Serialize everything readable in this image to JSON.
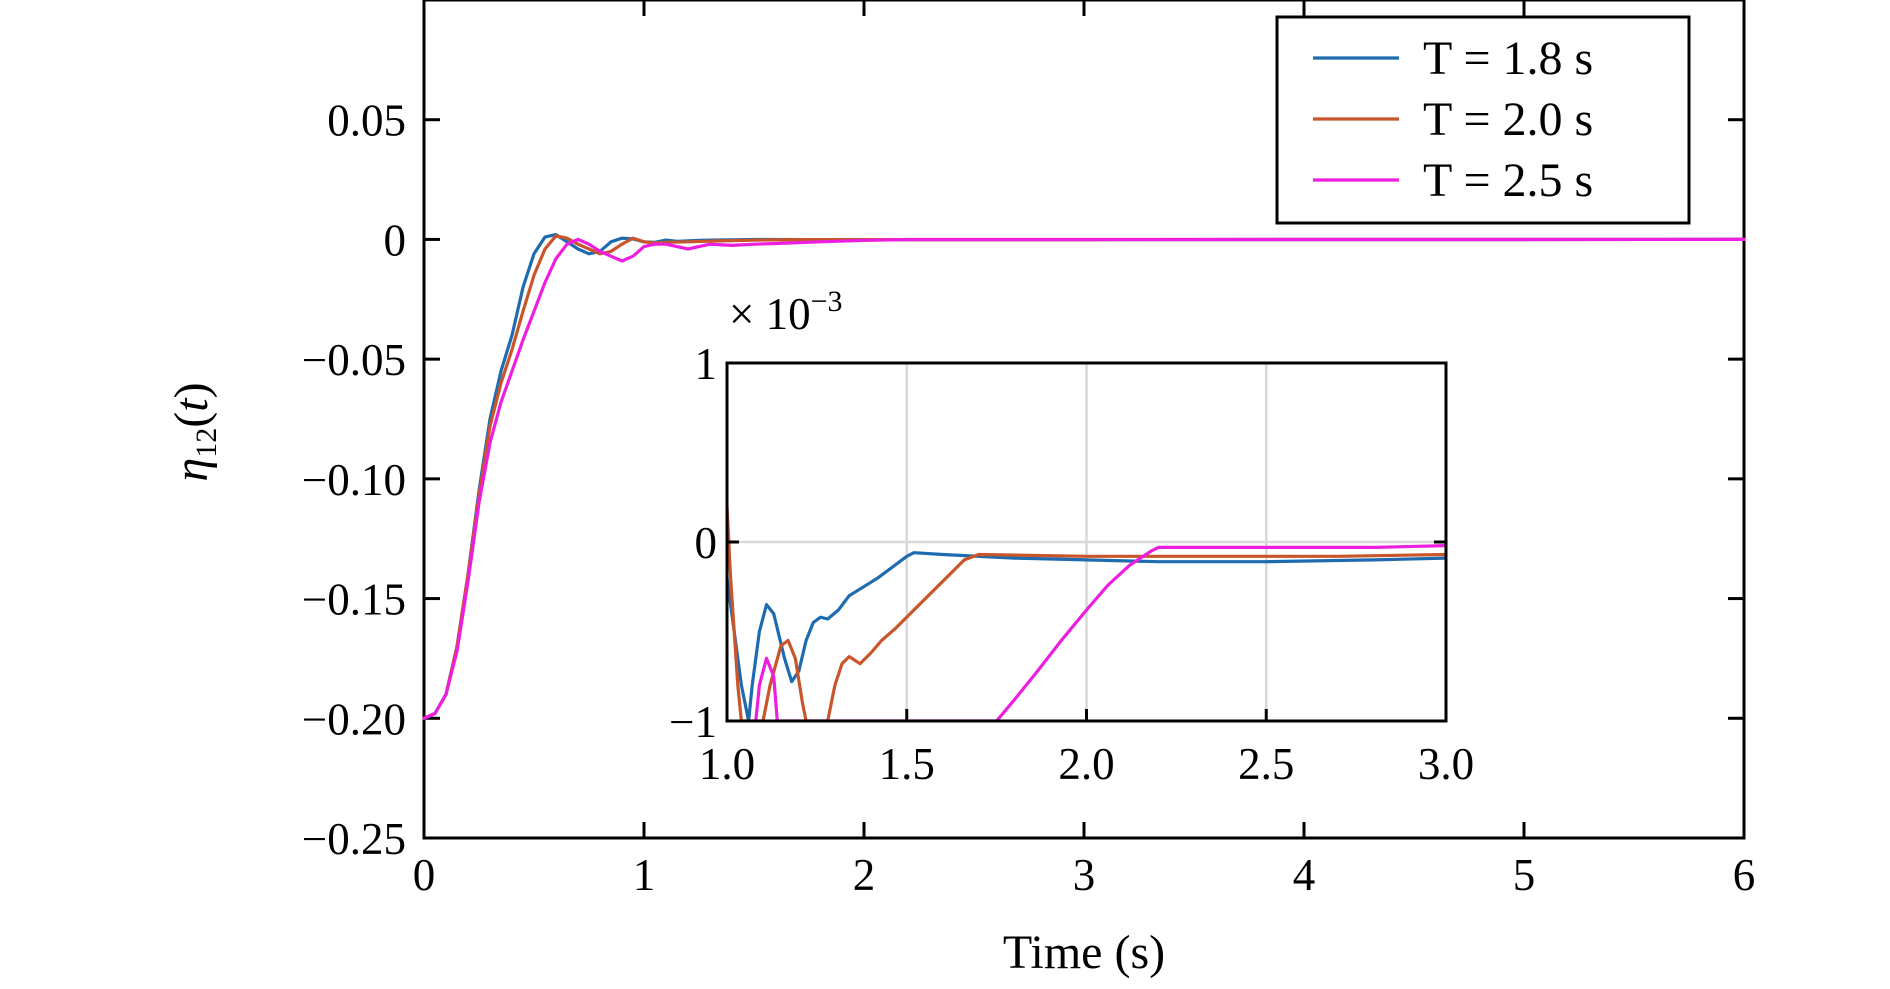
{
  "chart_data": [
    {
      "type": "line",
      "xlabel": "Time (s)",
      "ylabel": "η12(t)",
      "xlim": [
        0,
        6
      ],
      "ylim": [
        -0.25,
        0.1
      ],
      "xticks": [
        "0",
        "1",
        "2",
        "3",
        "4",
        "5",
        "6"
      ],
      "yticks": [
        "0.05",
        "0",
        "−0.05",
        "−0.10",
        "−0.15",
        "−0.20",
        "−0.25"
      ],
      "grid": false,
      "legend_position": "top-right",
      "series": [
        {
          "name": "T = 1.8 s",
          "color": "#1f6bb0",
          "points": [
            [
              0,
              -0.2
            ],
            [
              0.05,
              -0.198
            ],
            [
              0.1,
              -0.19
            ],
            [
              0.15,
              -0.17
            ],
            [
              0.2,
              -0.14
            ],
            [
              0.25,
              -0.105
            ],
            [
              0.3,
              -0.075
            ],
            [
              0.35,
              -0.055
            ],
            [
              0.4,
              -0.04
            ],
            [
              0.45,
              -0.02
            ],
            [
              0.5,
              -0.006
            ],
            [
              0.55,
              0.001
            ],
            [
              0.6,
              0.002
            ],
            [
              0.65,
              -0.001
            ],
            [
              0.7,
              -0.004
            ],
            [
              0.75,
              -0.006
            ],
            [
              0.8,
              -0.005
            ],
            [
              0.85,
              -0.001
            ],
            [
              0.9,
              0.0005
            ],
            [
              0.95,
              0.0002
            ],
            [
              1.0,
              -0.001
            ],
            [
              1.05,
              -0.0012
            ],
            [
              1.1,
              -0.0003
            ],
            [
              1.15,
              -0.0008
            ],
            [
              1.2,
              -0.0006
            ],
            [
              1.25,
              -0.0004
            ],
            [
              1.3,
              -0.0003
            ],
            [
              1.4,
              -0.00015
            ],
            [
              1.5,
              -5e-05
            ],
            [
              2.0,
              -0.0001
            ],
            [
              2.5,
              -0.00011
            ],
            [
              3.0,
              -9e-05
            ],
            [
              4.0,
              -5e-05
            ],
            [
              5.0,
              -2e-05
            ],
            [
              6.0,
              0.0
            ]
          ]
        },
        {
          "name": "T = 2.0 s",
          "color": "#c8562a",
          "points": [
            [
              0,
              -0.2
            ],
            [
              0.05,
              -0.198
            ],
            [
              0.1,
              -0.19
            ],
            [
              0.15,
              -0.17
            ],
            [
              0.2,
              -0.14
            ],
            [
              0.25,
              -0.107
            ],
            [
              0.3,
              -0.078
            ],
            [
              0.35,
              -0.06
            ],
            [
              0.4,
              -0.046
            ],
            [
              0.45,
              -0.03
            ],
            [
              0.5,
              -0.015
            ],
            [
              0.55,
              -0.004
            ],
            [
              0.6,
              0.0015
            ],
            [
              0.65,
              0.0005
            ],
            [
              0.7,
              -0.002
            ],
            [
              0.75,
              -0.004
            ],
            [
              0.8,
              -0.006
            ],
            [
              0.85,
              -0.005
            ],
            [
              0.9,
              -0.002
            ],
            [
              0.95,
              0.0005
            ],
            [
              1.0,
              -0.001
            ],
            [
              1.05,
              -0.0015
            ],
            [
              1.1,
              -0.0012
            ],
            [
              1.2,
              -0.001
            ],
            [
              1.3,
              -0.0007
            ],
            [
              1.4,
              -0.0005
            ],
            [
              1.5,
              -0.0003
            ],
            [
              1.6,
              -0.0002
            ],
            [
              1.7,
              -7e-05
            ],
            [
              2.0,
              -8e-05
            ],
            [
              2.5,
              -8e-05
            ],
            [
              3.0,
              -7e-05
            ],
            [
              4.0,
              -4e-05
            ],
            [
              5.0,
              -2e-05
            ],
            [
              6.0,
              0.0
            ]
          ]
        },
        {
          "name": "T = 2.5 s",
          "color": "#ee1ee0",
          "points": [
            [
              0,
              -0.2
            ],
            [
              0.05,
              -0.198
            ],
            [
              0.1,
              -0.19
            ],
            [
              0.15,
              -0.172
            ],
            [
              0.2,
              -0.143
            ],
            [
              0.25,
              -0.11
            ],
            [
              0.3,
              -0.085
            ],
            [
              0.35,
              -0.068
            ],
            [
              0.4,
              -0.055
            ],
            [
              0.45,
              -0.042
            ],
            [
              0.5,
              -0.03
            ],
            [
              0.55,
              -0.018
            ],
            [
              0.6,
              -0.008
            ],
            [
              0.65,
              -0.002
            ],
            [
              0.7,
              0.0
            ],
            [
              0.75,
              -0.002
            ],
            [
              0.8,
              -0.005
            ],
            [
              0.85,
              -0.007
            ],
            [
              0.9,
              -0.009
            ],
            [
              0.95,
              -0.007
            ],
            [
              1.0,
              -0.003
            ],
            [
              1.05,
              -0.002
            ],
            [
              1.1,
              -0.002
            ],
            [
              1.15,
              -0.003
            ],
            [
              1.2,
              -0.004
            ],
            [
              1.25,
              -0.003
            ],
            [
              1.3,
              -0.002
            ],
            [
              1.4,
              -0.0025
            ],
            [
              1.5,
              -0.002
            ],
            [
              1.6,
              -0.0017
            ],
            [
              1.8,
              -0.001
            ],
            [
              2.0,
              -0.0004
            ],
            [
              2.2,
              -3e-05
            ],
            [
              2.5,
              -3e-05
            ],
            [
              3.0,
              -3e-05
            ],
            [
              4.0,
              -2e-05
            ],
            [
              5.0,
              -1e-05
            ],
            [
              6.0,
              0.0
            ]
          ]
        }
      ]
    },
    {
      "type": "line",
      "inset": true,
      "xlim": [
        1.0,
        3.0
      ],
      "ylim": [
        -1,
        1
      ],
      "y_multiplier": "× 10",
      "y_multiplier_exp": "−3",
      "xticks": [
        "1.0",
        "1.5",
        "2.0",
        "2.5",
        "3.0"
      ],
      "yticks": [
        "1",
        "0",
        "−1"
      ],
      "grid": true,
      "series": [
        {
          "name": "T = 1.8 s",
          "color": "#1f6bb0",
          "points": [
            [
              1.0,
              -0.2
            ],
            [
              1.04,
              -0.8
            ],
            [
              1.06,
              -1.0
            ],
            [
              1.07,
              -0.8
            ],
            [
              1.09,
              -0.5
            ],
            [
              1.11,
              -0.35
            ],
            [
              1.13,
              -0.4
            ],
            [
              1.16,
              -0.65
            ],
            [
              1.18,
              -0.78
            ],
            [
              1.2,
              -0.72
            ],
            [
              1.22,
              -0.55
            ],
            [
              1.24,
              -0.45
            ],
            [
              1.26,
              -0.42
            ],
            [
              1.28,
              -0.43
            ],
            [
              1.31,
              -0.38
            ],
            [
              1.34,
              -0.3
            ],
            [
              1.38,
              -0.25
            ],
            [
              1.42,
              -0.2
            ],
            [
              1.46,
              -0.14
            ],
            [
              1.5,
              -0.08
            ],
            [
              1.52,
              -0.06
            ],
            [
              1.6,
              -0.07
            ],
            [
              1.8,
              -0.09
            ],
            [
              2.0,
              -0.1
            ],
            [
              2.2,
              -0.11
            ],
            [
              2.5,
              -0.11
            ],
            [
              2.8,
              -0.1
            ],
            [
              3.0,
              -0.09
            ]
          ]
        },
        {
          "name": "T = 2.0 s",
          "color": "#c8562a",
          "points": [
            [
              1.0,
              0.2
            ],
            [
              1.01,
              -0.2
            ],
            [
              1.03,
              -0.8
            ],
            [
              1.04,
              -1.0
            ],
            [
              1.1,
              -1.0
            ],
            [
              1.12,
              -0.8
            ],
            [
              1.15,
              -0.58
            ],
            [
              1.17,
              -0.55
            ],
            [
              1.19,
              -0.65
            ],
            [
              1.21,
              -0.9
            ],
            [
              1.22,
              -1.0
            ],
            [
              1.28,
              -1.0
            ],
            [
              1.3,
              -0.8
            ],
            [
              1.32,
              -0.68
            ],
            [
              1.34,
              -0.64
            ],
            [
              1.37,
              -0.68
            ],
            [
              1.4,
              -0.62
            ],
            [
              1.43,
              -0.55
            ],
            [
              1.47,
              -0.48
            ],
            [
              1.52,
              -0.38
            ],
            [
              1.57,
              -0.28
            ],
            [
              1.62,
              -0.18
            ],
            [
              1.66,
              -0.1
            ],
            [
              1.7,
              -0.07
            ],
            [
              2.0,
              -0.08
            ],
            [
              2.3,
              -0.08
            ],
            [
              2.7,
              -0.08
            ],
            [
              3.0,
              -0.07
            ]
          ]
        },
        {
          "name": "T = 2.5 s",
          "color": "#ee1ee0",
          "points": [
            [
              1.08,
              -1.0
            ],
            [
              1.09,
              -0.8
            ],
            [
              1.11,
              -0.65
            ],
            [
              1.13,
              -0.75
            ],
            [
              1.14,
              -1.0
            ],
            [
              1.75,
              -1.0
            ],
            [
              1.8,
              -0.88
            ],
            [
              1.86,
              -0.73
            ],
            [
              1.93,
              -0.55
            ],
            [
              2.0,
              -0.38
            ],
            [
              2.06,
              -0.24
            ],
            [
              2.12,
              -0.13
            ],
            [
              2.18,
              -0.05
            ],
            [
              2.2,
              -0.03
            ],
            [
              2.5,
              -0.03
            ],
            [
              2.8,
              -0.03
            ],
            [
              3.0,
              -0.02
            ]
          ]
        }
      ]
    }
  ]
}
